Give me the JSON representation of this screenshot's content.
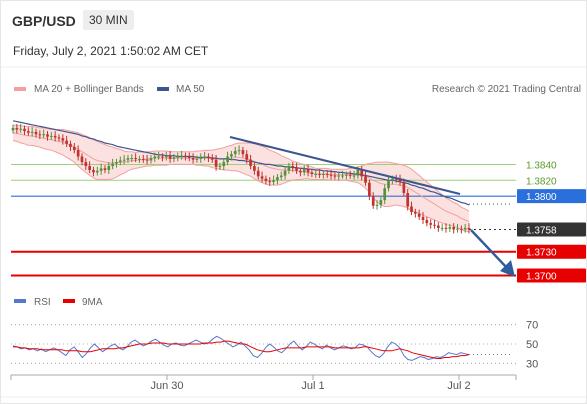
{
  "header": {
    "symbol": "GBP/USD",
    "timeframe": "30 MIN",
    "datetime": "Friday, July 2, 2021 1:50:02 AM CET"
  },
  "legend": {
    "bollinger_label": "MA 20 + Bollinger Bands",
    "ma50_label": "MA 50",
    "credit": "Research © 2021 Trading Central",
    "rsi_label": "RSI",
    "rsi_ma_label": "9MA"
  },
  "colors": {
    "bollinger": "#f2a0a0",
    "band_fill": "#fbdcdc",
    "ma50": "#3d5691",
    "up_candle": "#55913a",
    "down_candle": "#c0332f",
    "resistance_green": "#9dd07a",
    "pivot_blue": "#2a6fdb",
    "support_red": "#e60000",
    "current_price_bg": "#333333",
    "rsi_line": "#5577cc",
    "rsi_ma_line": "#e60000",
    "trend_arrow": "#2f5c9c"
  },
  "chart_data": [
    {
      "type": "candlestick",
      "x_ticks": [
        "Jun 30",
        "Jul 1",
        "Jul 2"
      ],
      "price_levels": [
        {
          "value": "1.3840",
          "kind": "resistance",
          "color": "#9dd07a"
        },
        {
          "value": "1.3820",
          "kind": "resistance",
          "color": "#9dd07a"
        },
        {
          "value": "1.3800",
          "kind": "pivot",
          "color": "#2a6fdb"
        },
        {
          "value": "1.3758",
          "kind": "current",
          "color": "#333333"
        },
        {
          "value": "1.3730",
          "kind": "support",
          "color": "#e60000"
        },
        {
          "value": "1.3700",
          "kind": "support",
          "color": "#e60000"
        }
      ],
      "ylim": [
        1.3683,
        1.3925
      ],
      "series": [
        {
          "name": "MA 20 + Bollinger Bands",
          "color": "#f2a0a0"
        },
        {
          "name": "MA 50",
          "color": "#3d5691"
        }
      ],
      "closes": [
        1.3886,
        1.3884,
        1.3885,
        1.3882,
        1.388,
        1.3881,
        1.3878,
        1.3877,
        1.3878,
        1.3875,
        1.3876,
        1.3874,
        1.3873,
        1.387,
        1.3866,
        1.3862,
        1.3858,
        1.385,
        1.3843,
        1.3838,
        1.3833,
        1.383,
        1.3832,
        1.3835,
        1.3833,
        1.3838,
        1.3841,
        1.3843,
        1.3845,
        1.3846,
        1.3848,
        1.3848,
        1.3847,
        1.3847,
        1.3846,
        1.3845,
        1.3848,
        1.385,
        1.385,
        1.3849,
        1.3851,
        1.3847,
        1.3849,
        1.385,
        1.3851,
        1.385,
        1.3848,
        1.3846,
        1.3847,
        1.3849,
        1.385,
        1.3848,
        1.3846,
        1.3837,
        1.3838,
        1.3843,
        1.385,
        1.3853,
        1.3857,
        1.3858,
        1.3853,
        1.3846,
        1.3838,
        1.3832,
        1.3825,
        1.3822,
        1.3819,
        1.3818,
        1.382,
        1.3824,
        1.3826,
        1.3832,
        1.3838,
        1.3836,
        1.3832,
        1.383,
        1.3834,
        1.383,
        1.3828,
        1.3828,
        1.3827,
        1.3828,
        1.3827,
        1.3826,
        1.3825,
        1.3826,
        1.3826,
        1.3827,
        1.3826,
        1.3826,
        1.3833,
        1.3825,
        1.3817,
        1.38,
        1.3788,
        1.3789,
        1.3795,
        1.381,
        1.382,
        1.3822,
        1.3821,
        1.3818,
        1.3804,
        1.3787,
        1.378,
        1.3778,
        1.3774,
        1.377,
        1.3766,
        1.3764,
        1.3763,
        1.376,
        1.376,
        1.3759,
        1.3761,
        1.3758,
        1.3759,
        1.3758,
        1.376,
        1.3758
      ],
      "ma20": [
        1.388,
        1.3879,
        1.3878,
        1.3877,
        1.3876,
        1.3876,
        1.3875,
        1.3874,
        1.3873,
        1.3872,
        1.3871,
        1.387,
        1.3869,
        1.3868,
        1.3866,
        1.3864,
        1.3862,
        1.3859,
        1.3856,
        1.3853,
        1.385,
        1.3847,
        1.3845,
        1.3844,
        1.3843,
        1.3842,
        1.3842,
        1.3842,
        1.3843,
        1.3843,
        1.3844,
        1.3845,
        1.3845,
        1.3846,
        1.3846,
        1.3847,
        1.3847,
        1.3848,
        1.3848,
        1.3848,
        1.3848,
        1.3848,
        1.3848,
        1.3848,
        1.3848,
        1.3848,
        1.3848,
        1.3848,
        1.3848,
        1.3848,
        1.3848,
        1.3848,
        1.3847,
        1.3847,
        1.3847,
        1.3847,
        1.3848,
        1.3848,
        1.3849,
        1.3849,
        1.3848,
        1.3847,
        1.3846,
        1.3844,
        1.3842,
        1.384,
        1.3838,
        1.3836,
        1.3835,
        1.3834,
        1.3833,
        1.3833,
        1.3833,
        1.3832,
        1.3832,
        1.3831,
        1.3831,
        1.383,
        1.3829,
        1.3828,
        1.3828,
        1.3828,
        1.3828,
        1.3827,
        1.3827,
        1.3827,
        1.3827,
        1.3827,
        1.3827,
        1.3827,
        1.3827,
        1.3826,
        1.3825,
        1.3823,
        1.382,
        1.3818,
        1.3816,
        1.3815,
        1.3815,
        1.3815,
        1.3815,
        1.3814,
        1.3813,
        1.3811,
        1.3808,
        1.3805,
        1.3802,
        1.3799,
        1.3796,
        1.3793,
        1.379,
        1.3787,
        1.3784,
        1.3781,
        1.3779,
        1.3777,
        1.3775,
        1.3772,
        1.377,
        1.3768
      ],
      "ma50": [
        1.3895,
        1.3894,
        1.3893,
        1.3892,
        1.3891,
        1.389,
        1.3889,
        1.3888,
        1.3887,
        1.3886,
        1.3885,
        1.3884,
        1.3883,
        1.3882,
        1.3881,
        1.388,
        1.3879,
        1.3878,
        1.3876,
        1.3875,
        1.3873,
        1.3872,
        1.387,
        1.3869,
        1.3867,
        1.3866,
        1.3865,
        1.3863,
        1.3862,
        1.3861,
        1.386,
        1.3859,
        1.3858,
        1.3857,
        1.3856,
        1.3855,
        1.3854,
        1.3853,
        1.3852,
        1.3852,
        1.3851,
        1.3851,
        1.3851,
        1.385,
        1.385,
        1.385,
        1.385,
        1.385,
        1.3849,
        1.3849,
        1.3849,
        1.3849,
        1.3848,
        1.3848,
        1.3847,
        1.3847,
        1.3847,
        1.3846,
        1.3846,
        1.3845,
        1.3845,
        1.3844,
        1.3844,
        1.3843,
        1.3842,
        1.3841,
        1.384,
        1.384,
        1.3839,
        1.3838,
        1.3838,
        1.3837,
        1.3837,
        1.3836,
        1.3836,
        1.3835,
        1.3835,
        1.3834,
        1.3834,
        1.3833,
        1.3833,
        1.3832,
        1.3832,
        1.3831,
        1.3831,
        1.383,
        1.383,
        1.3829,
        1.3829,
        1.3828,
        1.3828,
        1.3827,
        1.3826,
        1.3825,
        1.3824,
        1.3823,
        1.3822,
        1.3821,
        1.382,
        1.382,
        1.3819,
        1.3818,
        1.3817,
        1.3816,
        1.3814,
        1.3813,
        1.3811,
        1.381,
        1.3808,
        1.3806,
        1.3805,
        1.3803,
        1.3801,
        1.3799,
        1.3798,
        1.3796,
        1.3794,
        1.3792,
        1.3791,
        1.3789
      ],
      "band_width": [
        0.001,
        0.001,
        0.0011,
        0.0011,
        0.0012,
        0.0012,
        0.0012,
        0.0012,
        0.0013,
        0.0013,
        0.0013,
        0.0014,
        0.0015,
        0.0016,
        0.0017,
        0.0018,
        0.0019,
        0.0021,
        0.0022,
        0.0023,
        0.0024,
        0.0024,
        0.0024,
        0.0023,
        0.0022,
        0.0021,
        0.002,
        0.0018,
        0.0016,
        0.0014,
        0.0012,
        0.0011,
        0.001,
        0.001,
        0.0009,
        0.0009,
        0.0009,
        0.0009,
        0.0009,
        0.0009,
        0.0009,
        0.0008,
        0.0008,
        0.0008,
        0.0008,
        0.0008,
        0.0008,
        0.0008,
        0.0009,
        0.0009,
        0.001,
        0.001,
        0.0011,
        0.0012,
        0.0013,
        0.0014,
        0.0015,
        0.0016,
        0.0017,
        0.0018,
        0.0019,
        0.002,
        0.0021,
        0.0022,
        0.0023,
        0.0023,
        0.0023,
        0.0022,
        0.0021,
        0.002,
        0.0018,
        0.0016,
        0.0014,
        0.0012,
        0.0011,
        0.001,
        0.0009,
        0.0008,
        0.0008,
        0.0007,
        0.0007,
        0.0007,
        0.0007,
        0.0007,
        0.0007,
        0.0007,
        0.0007,
        0.0007,
        0.0008,
        0.0009,
        0.001,
        0.0012,
        0.0015,
        0.0018,
        0.0022,
        0.0025,
        0.0027,
        0.0028,
        0.0028,
        0.0027,
        0.0026,
        0.0026,
        0.0026,
        0.0026,
        0.0026,
        0.0025,
        0.0024,
        0.0023,
        0.0022,
        0.0021,
        0.002,
        0.0019,
        0.0018,
        0.0017,
        0.0016,
        0.0015,
        0.0015,
        0.0014,
        0.0014,
        0.0013
      ]
    },
    {
      "type": "line",
      "title": "RSI",
      "y_ticks": [
        "70",
        "50",
        "30"
      ],
      "ylim": [
        20,
        80
      ],
      "series": [
        {
          "name": "RSI",
          "color": "#5577cc",
          "values": [
            48,
            47,
            45,
            46,
            44,
            45,
            43,
            45,
            42,
            44,
            46,
            44,
            41,
            38,
            44,
            47,
            42,
            36,
            40,
            46,
            50,
            46,
            42,
            45,
            48,
            50,
            46,
            44,
            47,
            52,
            54,
            51,
            48,
            50,
            53,
            55,
            52,
            49,
            47,
            50,
            51,
            49,
            48,
            50,
            52,
            54,
            52,
            50,
            51,
            55,
            58,
            56,
            53,
            50,
            47,
            49,
            52,
            48,
            44,
            38,
            36,
            40,
            46,
            50,
            47,
            43,
            41,
            45,
            50,
            53,
            48,
            44,
            47,
            52,
            50,
            47,
            45,
            49,
            46,
            44,
            46,
            48,
            47,
            45,
            46,
            50,
            49,
            47,
            42,
            38,
            36,
            40,
            47,
            52,
            50,
            46,
            38,
            34,
            33,
            35,
            37,
            36,
            34,
            35,
            37,
            36,
            38,
            41,
            40,
            39,
            41,
            40,
            39
          ]
        },
        {
          "name": "9MA",
          "color": "#e60000",
          "values": [
            47,
            47,
            46,
            46,
            45,
            45,
            45,
            44,
            44,
            44,
            44,
            44,
            44,
            43,
            43,
            43,
            43,
            42,
            42,
            42,
            43,
            44,
            45,
            45,
            45,
            45,
            46,
            46,
            47,
            48,
            49,
            50,
            50,
            50,
            51,
            51,
            51,
            51,
            50,
            50,
            50,
            50,
            50,
            50,
            50,
            50,
            50,
            51,
            51,
            51,
            52,
            52,
            53,
            53,
            52,
            51,
            50,
            50,
            48,
            46,
            44,
            43,
            42,
            42,
            43,
            44,
            45,
            46,
            46,
            46,
            46,
            46,
            47,
            47,
            47,
            47,
            47,
            47,
            47,
            46,
            46,
            46,
            46,
            46,
            46,
            46,
            47,
            47,
            46,
            45,
            44,
            43,
            43,
            43,
            44,
            45,
            44,
            43,
            41,
            40,
            39,
            38,
            37,
            36,
            35,
            35,
            36,
            36,
            37,
            37,
            38,
            38,
            39
          ]
        }
      ]
    }
  ]
}
